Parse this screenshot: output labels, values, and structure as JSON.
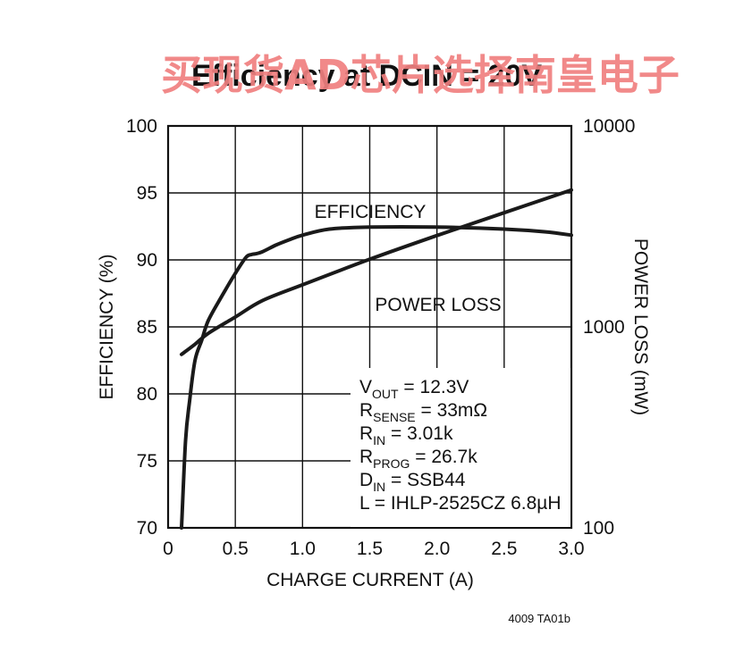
{
  "watermark": "买现货AD芯片选择南皇电子",
  "figure_code": "4009 TA01b",
  "chart_data": {
    "type": "line",
    "title": "Efficiency at DCIN = 20V",
    "xlabel": "CHARGE CURRENT (A)",
    "ylabel": "EFFICIENCY (%)",
    "y2label": "POWER LOSS (mW)",
    "xlim": [
      0,
      3.0
    ],
    "ylim": [
      70,
      100
    ],
    "y2lim": [
      100,
      10000
    ],
    "y2scale": "log",
    "grid": true,
    "x_ticks": [
      "0",
      "0.5",
      "1.0",
      "1.5",
      "2.0",
      "2.5",
      "3.0"
    ],
    "y_ticks": [
      "70",
      "75",
      "80",
      "85",
      "90",
      "95",
      "100"
    ],
    "y2_ticks": [
      "100",
      "1000",
      "10000"
    ],
    "series": [
      {
        "name": "EFFICIENCY",
        "axis": "left",
        "x": [
          0.1,
          0.13,
          0.16,
          0.2,
          0.25,
          0.3,
          0.4,
          0.5,
          0.58,
          0.62,
          0.65,
          0.7,
          0.8,
          0.9,
          1.0,
          1.2,
          1.5,
          2.0,
          2.5,
          2.8,
          3.0
        ],
        "y": [
          70,
          76.5,
          79.5,
          82.5,
          84,
          85.5,
          87.3,
          89,
          90.2,
          90.4,
          90.45,
          90.6,
          91.1,
          91.5,
          91.85,
          92.3,
          92.45,
          92.45,
          92.3,
          92.1,
          91.85
        ]
      },
      {
        "name": "POWER LOSS",
        "axis": "right",
        "x": [
          0.1,
          0.2,
          0.3,
          0.5,
          0.7,
          1.0,
          1.5,
          2.0,
          2.5,
          3.0
        ],
        "y": [
          730,
          820,
          930,
          1120,
          1350,
          1620,
          2170,
          2850,
          3700,
          4800
        ]
      }
    ],
    "labels": {
      "efficiency": "EFFICIENCY",
      "power_loss": "POWER LOSS"
    },
    "conditions": [
      {
        "main": "V",
        "sub": "OUT",
        "rest": " = 12.3V"
      },
      {
        "main": "R",
        "sub": "SENSE",
        "rest": " = 33mΩ"
      },
      {
        "main": "R",
        "sub": "IN",
        "rest": " = 3.01k"
      },
      {
        "main": "R",
        "sub": "PROG",
        "rest": " = 26.7k"
      },
      {
        "main": "D",
        "sub": "IN",
        "rest": " = SSB44"
      },
      {
        "main": "L",
        "sub": "",
        "rest": " = IHLP-2525CZ 6.8µH"
      }
    ]
  }
}
